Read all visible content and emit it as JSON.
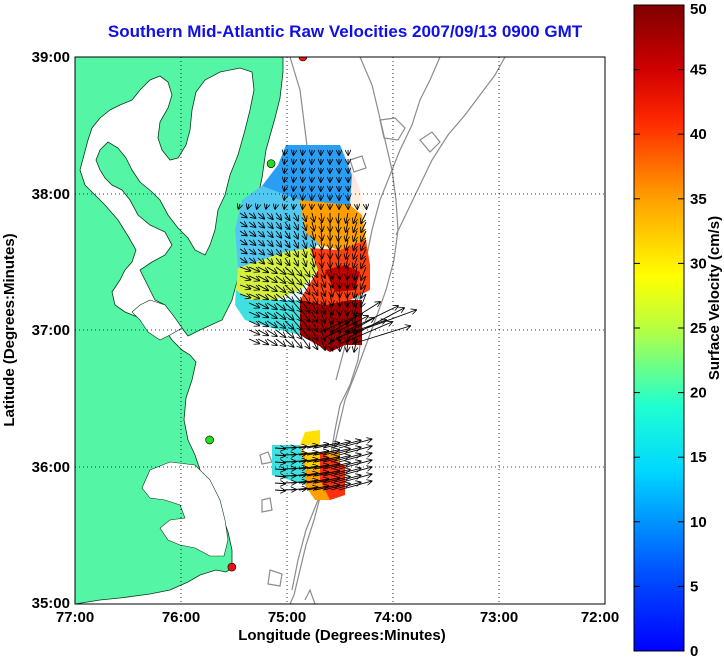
{
  "title": "Southern Mid-Atlantic Raw Velocities 2007/09/13 0900 GMT",
  "axes": {
    "xlabel": "Longitude (Degrees:Minutes)",
    "ylabel": "Latitude (Degrees:Minutes)",
    "x_ticks": [
      "77:00",
      "76:00",
      "75:00",
      "74:00",
      "73:00",
      "72:00"
    ],
    "y_ticks": [
      "35:00",
      "36:00",
      "37:00",
      "38:00",
      "39:00"
    ],
    "lon_range": [
      -77,
      -72
    ],
    "lat_range": [
      35,
      39
    ]
  },
  "colorbar": {
    "label": "Surface Velocity (cm/s)",
    "ticks": [
      "0",
      "5",
      "10",
      "15",
      "20",
      "25",
      "30",
      "35",
      "40",
      "45",
      "50"
    ],
    "range": [
      0,
      50
    ]
  },
  "colors": {
    "land": "#55f5a6",
    "title": "#1010e6",
    "bathymetry": "#8c8c8c",
    "station_green": "#22dd22",
    "station_red": "#ee1111"
  },
  "stations": [
    {
      "color": "red",
      "lon": -74.85,
      "lat": 39.0
    },
    {
      "color": "green",
      "lon": -75.15,
      "lat": 38.22
    },
    {
      "color": "green",
      "lon": -75.73,
      "lat": 36.2
    },
    {
      "color": "red",
      "lon": -75.52,
      "lat": 35.27
    }
  ]
}
